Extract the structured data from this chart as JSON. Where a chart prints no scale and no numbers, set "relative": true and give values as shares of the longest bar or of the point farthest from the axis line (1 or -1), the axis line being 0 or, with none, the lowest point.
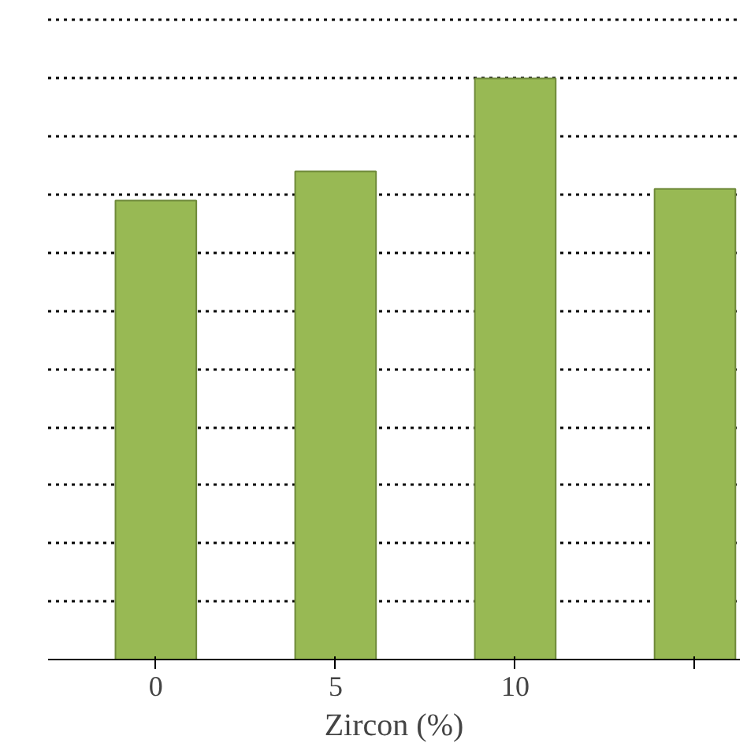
{
  "chart_data": {
    "type": "bar",
    "xlabel": "Zircon (%)",
    "categories": [
      "0",
      "5",
      "10",
      null
    ],
    "values": [
      0.79,
      0.84,
      1,
      0.81
    ],
    "color": "#98b954",
    "relative": true,
    "grid": "y"
  }
}
